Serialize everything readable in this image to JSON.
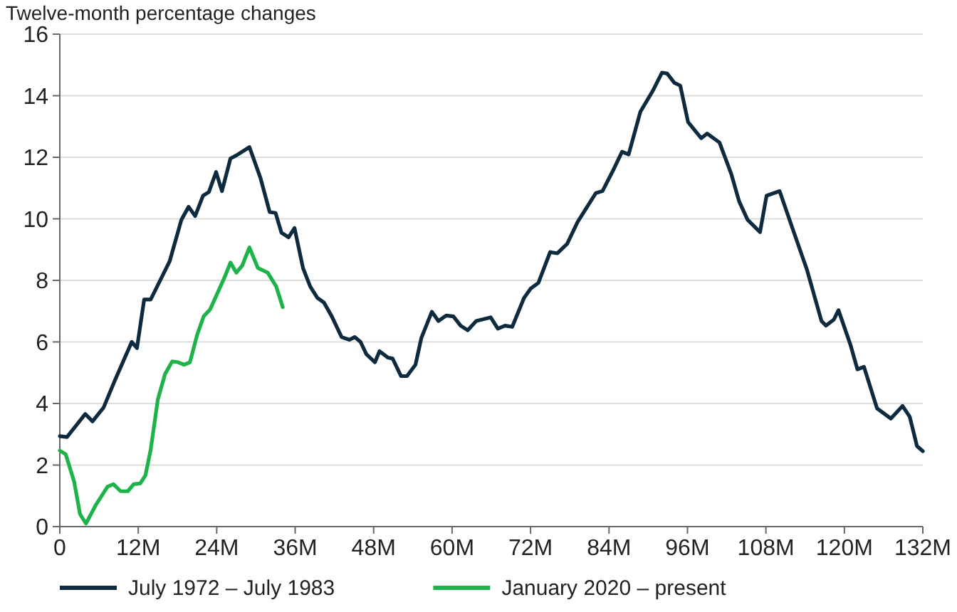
{
  "chart_data": {
    "type": "line",
    "title": "Twelve-month percentage changes",
    "xlim": [
      0,
      132
    ],
    "xticks": [
      0,
      {
        "value": 12,
        "label": "12M"
      },
      {
        "value": 24,
        "label": "24M"
      },
      {
        "value": 36,
        "label": "36M"
      },
      {
        "value": 48,
        "label": "48M"
      },
      {
        "value": 60,
        "label": "60M"
      },
      {
        "value": 72,
        "label": "72M"
      },
      {
        "value": 84,
        "label": "84M"
      },
      {
        "value": 96,
        "label": "96M"
      },
      {
        "value": 108,
        "label": "108M"
      },
      {
        "value": 120,
        "label": "120M"
      },
      {
        "value": 132,
        "label": "132M"
      }
    ],
    "ylim": [
      0,
      16
    ],
    "yticks": [
      0,
      2,
      4,
      6,
      8,
      10,
      12,
      14,
      16
    ],
    "grid": "y",
    "legend": "bottom",
    "line_style": "solid",
    "series": [
      {
        "name": "July 1972 – July 1983",
        "color": "#0d2a3f",
        "x": [
          0,
          1.1,
          3.9,
          5,
          6.7,
          8.4,
          11,
          11.8,
          12.9,
          13.9,
          16.8,
          18.6,
          19.7,
          20.7,
          21.9,
          22.8,
          23.9,
          24.8,
          26.1,
          27,
          29,
          30.7,
          32.1,
          33,
          33.9,
          35,
          35.9,
          37.2,
          38.3,
          39.4,
          40.4,
          41.6,
          43.1,
          44.3,
          45.1,
          46,
          46.9,
          48.2,
          48.9,
          50.2,
          50.9,
          52.2,
          53.1,
          54.4,
          55.3,
          56.9,
          57.9,
          59.1,
          60.2,
          61.3,
          62.4,
          63.7,
          65.9,
          67,
          68.1,
          69.2,
          71,
          72,
          73.2,
          75,
          76.1,
          77.6,
          79.2,
          80.5,
          82,
          83,
          84.5,
          86,
          87,
          88.8,
          90.7,
          92.1,
          92.9,
          94,
          94.9,
          96.1,
          98.1,
          99,
          100.9,
          102.7,
          103.9,
          105.2,
          107.1,
          108.1,
          110.1,
          112.1,
          114.3,
          116.5,
          117.2,
          118.4,
          119.1,
          120.9,
          122,
          123,
          125,
          127.1,
          128.9,
          130,
          131.1,
          132
        ],
        "values": [
          2.94,
          2.91,
          3.66,
          3.42,
          3.87,
          4.74,
          6.0,
          5.8,
          7.38,
          7.38,
          8.62,
          9.97,
          10.39,
          10.09,
          10.75,
          10.87,
          11.52,
          10.9,
          11.96,
          12.06,
          12.33,
          11.32,
          10.22,
          10.19,
          9.55,
          9.4,
          9.7,
          8.4,
          7.8,
          7.43,
          7.28,
          6.83,
          6.16,
          6.07,
          6.16,
          6.0,
          5.6,
          5.34,
          5.7,
          5.49,
          5.46,
          4.89,
          4.89,
          5.26,
          6.13,
          6.98,
          6.68,
          6.86,
          6.83,
          6.53,
          6.38,
          6.68,
          6.8,
          6.43,
          6.53,
          6.49,
          7.43,
          7.73,
          7.92,
          8.92,
          8.88,
          9.19,
          9.9,
          10.34,
          10.84,
          10.9,
          11.52,
          12.18,
          12.09,
          13.48,
          14.16,
          14.75,
          14.72,
          14.42,
          14.33,
          13.14,
          12.62,
          12.77,
          12.48,
          11.46,
          10.57,
          9.97,
          9.57,
          10.75,
          10.9,
          9.67,
          8.33,
          6.68,
          6.53,
          6.73,
          7.03,
          5.93,
          5.11,
          5.19,
          3.84,
          3.51,
          3.92,
          3.57,
          2.62,
          2.45
        ]
      },
      {
        "name": "January 2020 – present",
        "color": "#1db34a",
        "x": [
          0,
          0.9,
          2.2,
          3.1,
          4,
          5.5,
          7.3,
          8.2,
          9.3,
          10.4,
          11.3,
          12.3,
          13.1,
          13.9,
          15,
          16.1,
          17.2,
          18.1,
          19,
          19.9,
          21,
          22,
          23,
          24.1,
          25.2,
          26.1,
          27,
          27.9,
          29,
          30.3,
          31.8,
          33.1,
          34.1
        ],
        "values": [
          2.47,
          2.35,
          1.45,
          0.4,
          0.1,
          0.7,
          1.3,
          1.38,
          1.15,
          1.15,
          1.38,
          1.4,
          1.67,
          2.5,
          4.14,
          4.96,
          5.37,
          5.34,
          5.26,
          5.34,
          6.23,
          6.83,
          7.06,
          7.58,
          8.1,
          8.58,
          8.25,
          8.48,
          9.07,
          8.4,
          8.25,
          7.8,
          7.13
        ]
      }
    ]
  }
}
